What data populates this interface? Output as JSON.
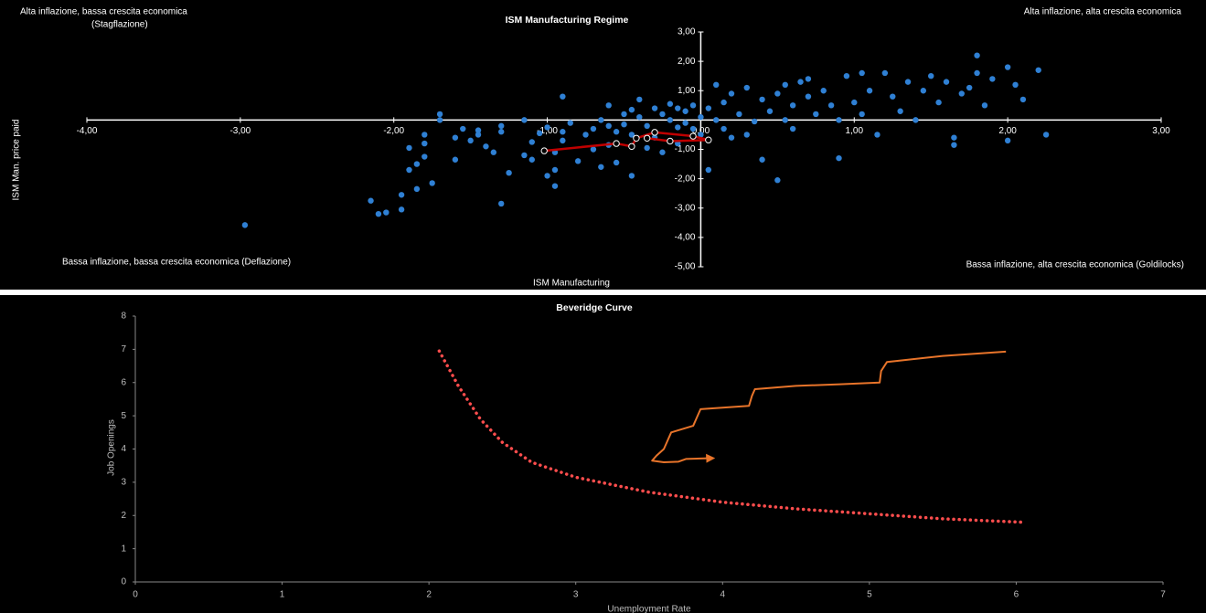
{
  "chart_data": [
    {
      "type": "scatter",
      "title": "ISM Manufacturing Regime",
      "x_label": "ISM Manufacturing",
      "y_label": "ISM Man. price paid",
      "annotations": [
        "Alta inflazione, bassa crescita economica",
        "(Stagflazione)",
        "Alta inflazione, alta crescita economica",
        "Bassa inflazione, bassa crescita economica (Deflazione)",
        "Bassa inflazione, alta crescita economica (Goldilocks)"
      ],
      "xlim": [
        -4,
        3
      ],
      "ylim": [
        -5,
        3
      ],
      "xticks": [
        {
          "value": -4,
          "label": "-4,00"
        },
        {
          "value": -3,
          "label": "-3,00"
        },
        {
          "value": -2,
          "label": "-2,00"
        },
        {
          "value": -1,
          "label": "-1,00"
        },
        {
          "value": 0,
          "label": "0,00"
        },
        {
          "value": 1,
          "label": "1,00"
        },
        {
          "value": 2,
          "label": "2,00"
        },
        {
          "value": 3,
          "label": "3,00"
        }
      ],
      "yticks": [
        {
          "value": 3,
          "label": "3,00"
        },
        {
          "value": 2,
          "label": "2,00"
        },
        {
          "value": 1,
          "label": "1,00"
        },
        {
          "value": -1,
          "label": "-1,00"
        },
        {
          "value": -2,
          "label": "-2,00"
        },
        {
          "value": -3,
          "label": "-3,00"
        },
        {
          "value": -4,
          "label": "-4,00"
        },
        {
          "value": -5,
          "label": "-5,00"
        }
      ],
      "series": [
        {
          "type": "scatter",
          "color": "#2f80d4",
          "x": [
            -2.97,
            -2.15,
            -2.1,
            -2.05,
            -1.95,
            -1.95,
            -1.85,
            -1.9,
            -1.85,
            -1.8,
            -1.9,
            -1.8,
            -1.8,
            -1.7,
            -1.7,
            -1.75,
            -1.6,
            -1.6,
            -1.55,
            -1.5,
            -1.45,
            -1.45,
            -1.4,
            -1.35,
            -1.3,
            -1.3,
            -1.25,
            -1.15,
            -1.15,
            -1.1,
            -1.1,
            -1.05,
            -1,
            -1,
            -0.95,
            -0.95,
            -0.95,
            -0.9,
            -0.9,
            -0.85,
            -0.8,
            -0.75,
            -0.7,
            -0.7,
            -0.65,
            -0.65,
            -0.6,
            -0.6,
            -0.55,
            -0.55,
            -0.5,
            -0.5,
            -0.45,
            -0.45,
            -0.4,
            -0.4,
            -0.35,
            -0.35,
            -0.3,
            -0.3,
            -0.25,
            -0.25,
            -0.2,
            -0.2,
            -0.15,
            -0.15,
            -0.1,
            -0.1,
            -0.05,
            -0.05,
            0,
            0,
            0.05,
            0.05,
            0.1,
            0.1,
            0.15,
            0.15,
            0.2,
            0.25,
            0.3,
            0.3,
            0.35,
            0.4,
            0.4,
            0.45,
            0.5,
            0.5,
            0.55,
            0.55,
            0.6,
            0.6,
            0.65,
            0.7,
            0.75,
            0.8,
            0.85,
            0.9,
            0.9,
            0.95,
            1,
            1.05,
            1.1,
            1.15,
            1.2,
            1.25,
            1.3,
            1.35,
            1.4,
            1.45,
            1.5,
            1.55,
            1.6,
            1.65,
            1.7,
            1.75,
            1.8,
            1.8,
            1.85,
            1.9,
            2,
            2.05,
            2.1,
            2.2,
            2.25,
            1.65,
            2,
            -0.9,
            -0.6,
            -1.3,
            -0.15,
            0.7,
            1.05,
            0.2,
            -0.45
          ],
          "values": [
            -3.58,
            -2.75,
            -3.2,
            -3.15,
            -3.05,
            -2.55,
            -2.35,
            -1.7,
            -1.5,
            -1.25,
            -0.95,
            -0.8,
            -0.5,
            0,
            0.2,
            -2.15,
            -0.6,
            -1.35,
            -0.3,
            -0.7,
            -0.35,
            -0.5,
            -0.9,
            -1.1,
            -0.4,
            -2.85,
            -1.8,
            -1.2,
            0,
            -0.75,
            -1.35,
            -0.45,
            -0.25,
            -1.9,
            -2.25,
            -1.7,
            -1.1,
            -0.7,
            -0.4,
            -0.1,
            -1.4,
            -0.5,
            -0.3,
            -1,
            -1.6,
            0,
            -0.85,
            0.5,
            -0.4,
            -1.45,
            0.2,
            -0.15,
            -1.9,
            -0.5,
            0.7,
            0.1,
            -0.2,
            -0.95,
            0.4,
            -0.6,
            0.2,
            -1.1,
            0,
            0.55,
            -0.25,
            -0.8,
            0.3,
            -0.1,
            -0.3,
            0.5,
            0.1,
            -0.5,
            0.4,
            -1.7,
            1.2,
            0,
            0.6,
            -0.3,
            0.9,
            0.2,
            1.1,
            -0.5,
            -0.05,
            0.7,
            -1.35,
            0.3,
            0.9,
            -2.05,
            0,
            1.2,
            0.5,
            -0.3,
            1.3,
            0.8,
            0.2,
            1,
            0.5,
            0,
            -1.3,
            1.5,
            0.6,
            0.2,
            1,
            -0.5,
            1.6,
            0.8,
            0.3,
            1.3,
            0,
            1,
            1.5,
            0.6,
            1.3,
            -0.6,
            0.9,
            1.1,
            2.2,
            1.6,
            0.5,
            1.4,
            -0.7,
            1.2,
            0.7,
            1.7,
            -0.5,
            -0.85,
            1.8,
            0.8,
            -0.2,
            -0.2,
            0.4,
            1.4,
            1.6,
            -0.6,
            0.35
          ]
        },
        {
          "type": "line",
          "color": "#c00000",
          "x": [
            -1.02,
            -0.55,
            -0.45,
            -0.42,
            -0.3,
            -0.05,
            0.05,
            -0.2,
            -0.35
          ],
          "values": [
            -1.05,
            -0.8,
            -0.9,
            -0.62,
            -0.42,
            -0.55,
            -0.68,
            -0.72,
            -0.62
          ]
        }
      ]
    },
    {
      "type": "line",
      "title": "Beveridge Curve",
      "x_label": "Unemployment Rate",
      "y_label": "Job Openings",
      "xlim": [
        0,
        7
      ],
      "ylim": [
        0,
        8
      ],
      "xticks": [
        0,
        1,
        2,
        3,
        4,
        5,
        6,
        7
      ],
      "yticks": [
        0,
        1,
        2,
        3,
        4,
        5,
        6,
        7,
        8
      ],
      "series": [
        {
          "color": "#ff4d4d",
          "style": "dotted",
          "x": [
            2.07,
            2.2,
            2.35,
            2.5,
            2.7,
            3,
            3.5,
            4,
            4.5,
            5,
            5.5,
            6.03
          ],
          "values": [
            6.95,
            5.9,
            4.9,
            4.2,
            3.6,
            3.15,
            2.7,
            2.4,
            2.2,
            2.05,
            1.9,
            1.8
          ]
        },
        {
          "color": "#e8742a",
          "style": "solid",
          "end": "arrow",
          "x": [
            5.93,
            5.5,
            5.12,
            5.08,
            5.07,
            4.8,
            4.5,
            4.22,
            4.2,
            4.18,
            3.85,
            3.82,
            3.8,
            3.65,
            3.62,
            3.6,
            3.55,
            3.52,
            3.6,
            3.7,
            3.75,
            3.9
          ],
          "values": [
            6.93,
            6.8,
            6.62,
            6.35,
            6,
            5.95,
            5.9,
            5.8,
            5.6,
            5.3,
            5.2,
            4.9,
            4.7,
            4.5,
            4.2,
            4,
            3.8,
            3.65,
            3.6,
            3.62,
            3.7,
            3.72
          ]
        }
      ]
    }
  ]
}
